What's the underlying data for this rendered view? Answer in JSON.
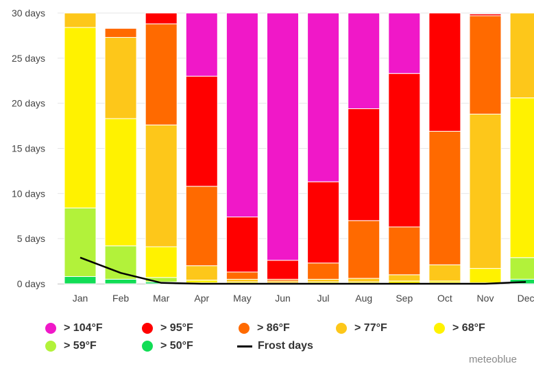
{
  "chart_data": {
    "type": "bar",
    "stacked": true,
    "categories": [
      "Jan",
      "Feb",
      "Mar",
      "Apr",
      "May",
      "Jun",
      "Jul",
      "Aug",
      "Sep",
      "Oct",
      "Nov",
      "Dec"
    ],
    "y_tick_labels": [
      "0 days",
      "5 days",
      "10 days",
      "15 days",
      "20 days",
      "25 days",
      "30 days"
    ],
    "ylim": [
      0,
      30
    ],
    "grid": true,
    "legend_position": "bottom",
    "series": [
      {
        "name": "> 50°F",
        "color": "#11dd55",
        "values": [
          0.8,
          0.5,
          0.2,
          0.0,
          0.0,
          0.0,
          0.0,
          0.0,
          0.0,
          0.0,
          0.0,
          0.5
        ]
      },
      {
        "name": "> 59°F",
        "color": "#b2f23a",
        "values": [
          7.6,
          3.7,
          0.5,
          0.1,
          0.0,
          0.0,
          0.0,
          0.0,
          0.0,
          0.1,
          0.1,
          2.4
        ]
      },
      {
        "name": "> 68°F",
        "color": "#fff200",
        "values": [
          20.0,
          14.1,
          3.4,
          0.3,
          0.2,
          0.1,
          0.2,
          0.2,
          0.3,
          0.2,
          1.6,
          17.7
        ]
      },
      {
        "name": "> 77°F",
        "color": "#fdc71a",
        "values": [
          1.6,
          9.0,
          13.5,
          1.6,
          0.3,
          0.2,
          0.3,
          0.4,
          0.7,
          1.8,
          17.1,
          9.4
        ]
      },
      {
        "name": "> 86°F",
        "color": "#ff6a00",
        "values": [
          0.0,
          1.0,
          11.2,
          8.8,
          0.8,
          0.2,
          1.8,
          6.4,
          5.3,
          14.8,
          10.9,
          0.0
        ]
      },
      {
        "name": "> 95°F",
        "color": "#ff0000",
        "values": [
          0.0,
          0.0,
          1.2,
          12.2,
          6.1,
          2.1,
          9.0,
          12.4,
          17.0,
          13.2,
          0.2,
          0.0
        ]
      },
      {
        "name": "> 104°F",
        "color": "#f018c8",
        "values": [
          0.0,
          0.0,
          0.0,
          7.0,
          22.6,
          27.4,
          18.7,
          10.6,
          6.7,
          0.0,
          0.0,
          0.0
        ]
      }
    ],
    "line_series": {
      "name": "Frost days",
      "color": "#000000",
      "values": [
        2.9,
        1.2,
        0.1,
        0.0,
        0.0,
        0.0,
        0.0,
        0.0,
        0.0,
        0.0,
        0.0,
        0.2
      ]
    }
  },
  "legend": [
    {
      "label": "> 104°F",
      "color": "#f018c8"
    },
    {
      "label": "> 95°F",
      "color": "#ff0000"
    },
    {
      "label": "> 86°F",
      "color": "#ff6a00"
    },
    {
      "label": "> 77°F",
      "color": "#fdc71a"
    },
    {
      "label": "> 68°F",
      "color": "#fff200"
    },
    {
      "label": "> 59°F",
      "color": "#b2f23a"
    },
    {
      "label": "> 50°F",
      "color": "#11dd55"
    },
    {
      "label": "Frost days",
      "color": "#000000",
      "line": true
    }
  ],
  "credits": "meteoblue"
}
